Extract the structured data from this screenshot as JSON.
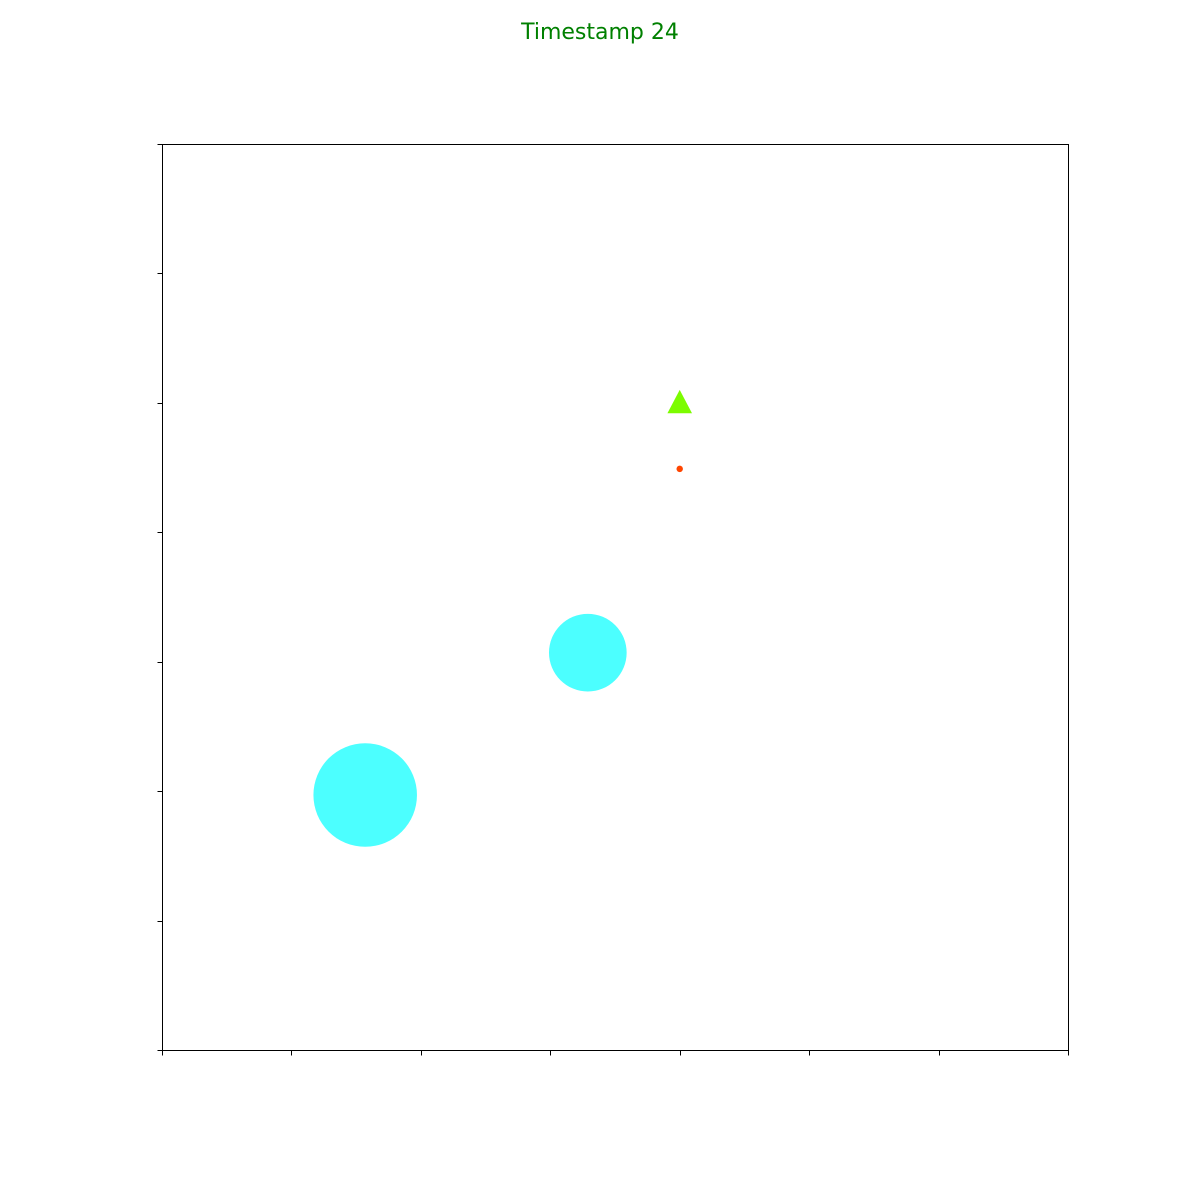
{
  "chart_data": {
    "type": "scatter",
    "title": "Timestamp 24",
    "title_color": "#008000",
    "xlabel": "",
    "ylabel": "",
    "xlim": [
      0,
      7
    ],
    "ylim": [
      0,
      7
    ],
    "xticks": [
      0,
      1,
      2,
      3,
      4,
      5,
      6,
      7
    ],
    "yticks": [
      0,
      1,
      2,
      3,
      4,
      5,
      6,
      7
    ],
    "tick_labels_visible": false,
    "grid": false,
    "objects": [
      {
        "name": "large-cyan-circle",
        "shape": "circle",
        "x": 1.57,
        "y": 1.97,
        "radius": 0.4,
        "color": "#00ffff",
        "opacity": 0.7
      },
      {
        "name": "medium-cyan-circle",
        "shape": "circle",
        "x": 3.29,
        "y": 3.07,
        "radius": 0.3,
        "color": "#00ffff",
        "opacity": 0.7
      },
      {
        "name": "green-triangle",
        "shape": "triangle",
        "x": 4.0,
        "y": 5.0,
        "size": 0.1,
        "color": "#7cfc00",
        "opacity": 1
      },
      {
        "name": "red-dot",
        "shape": "dot",
        "x": 4.0,
        "y": 4.49,
        "size": 0.025,
        "color": "#ff4500",
        "opacity": 1
      }
    ]
  }
}
